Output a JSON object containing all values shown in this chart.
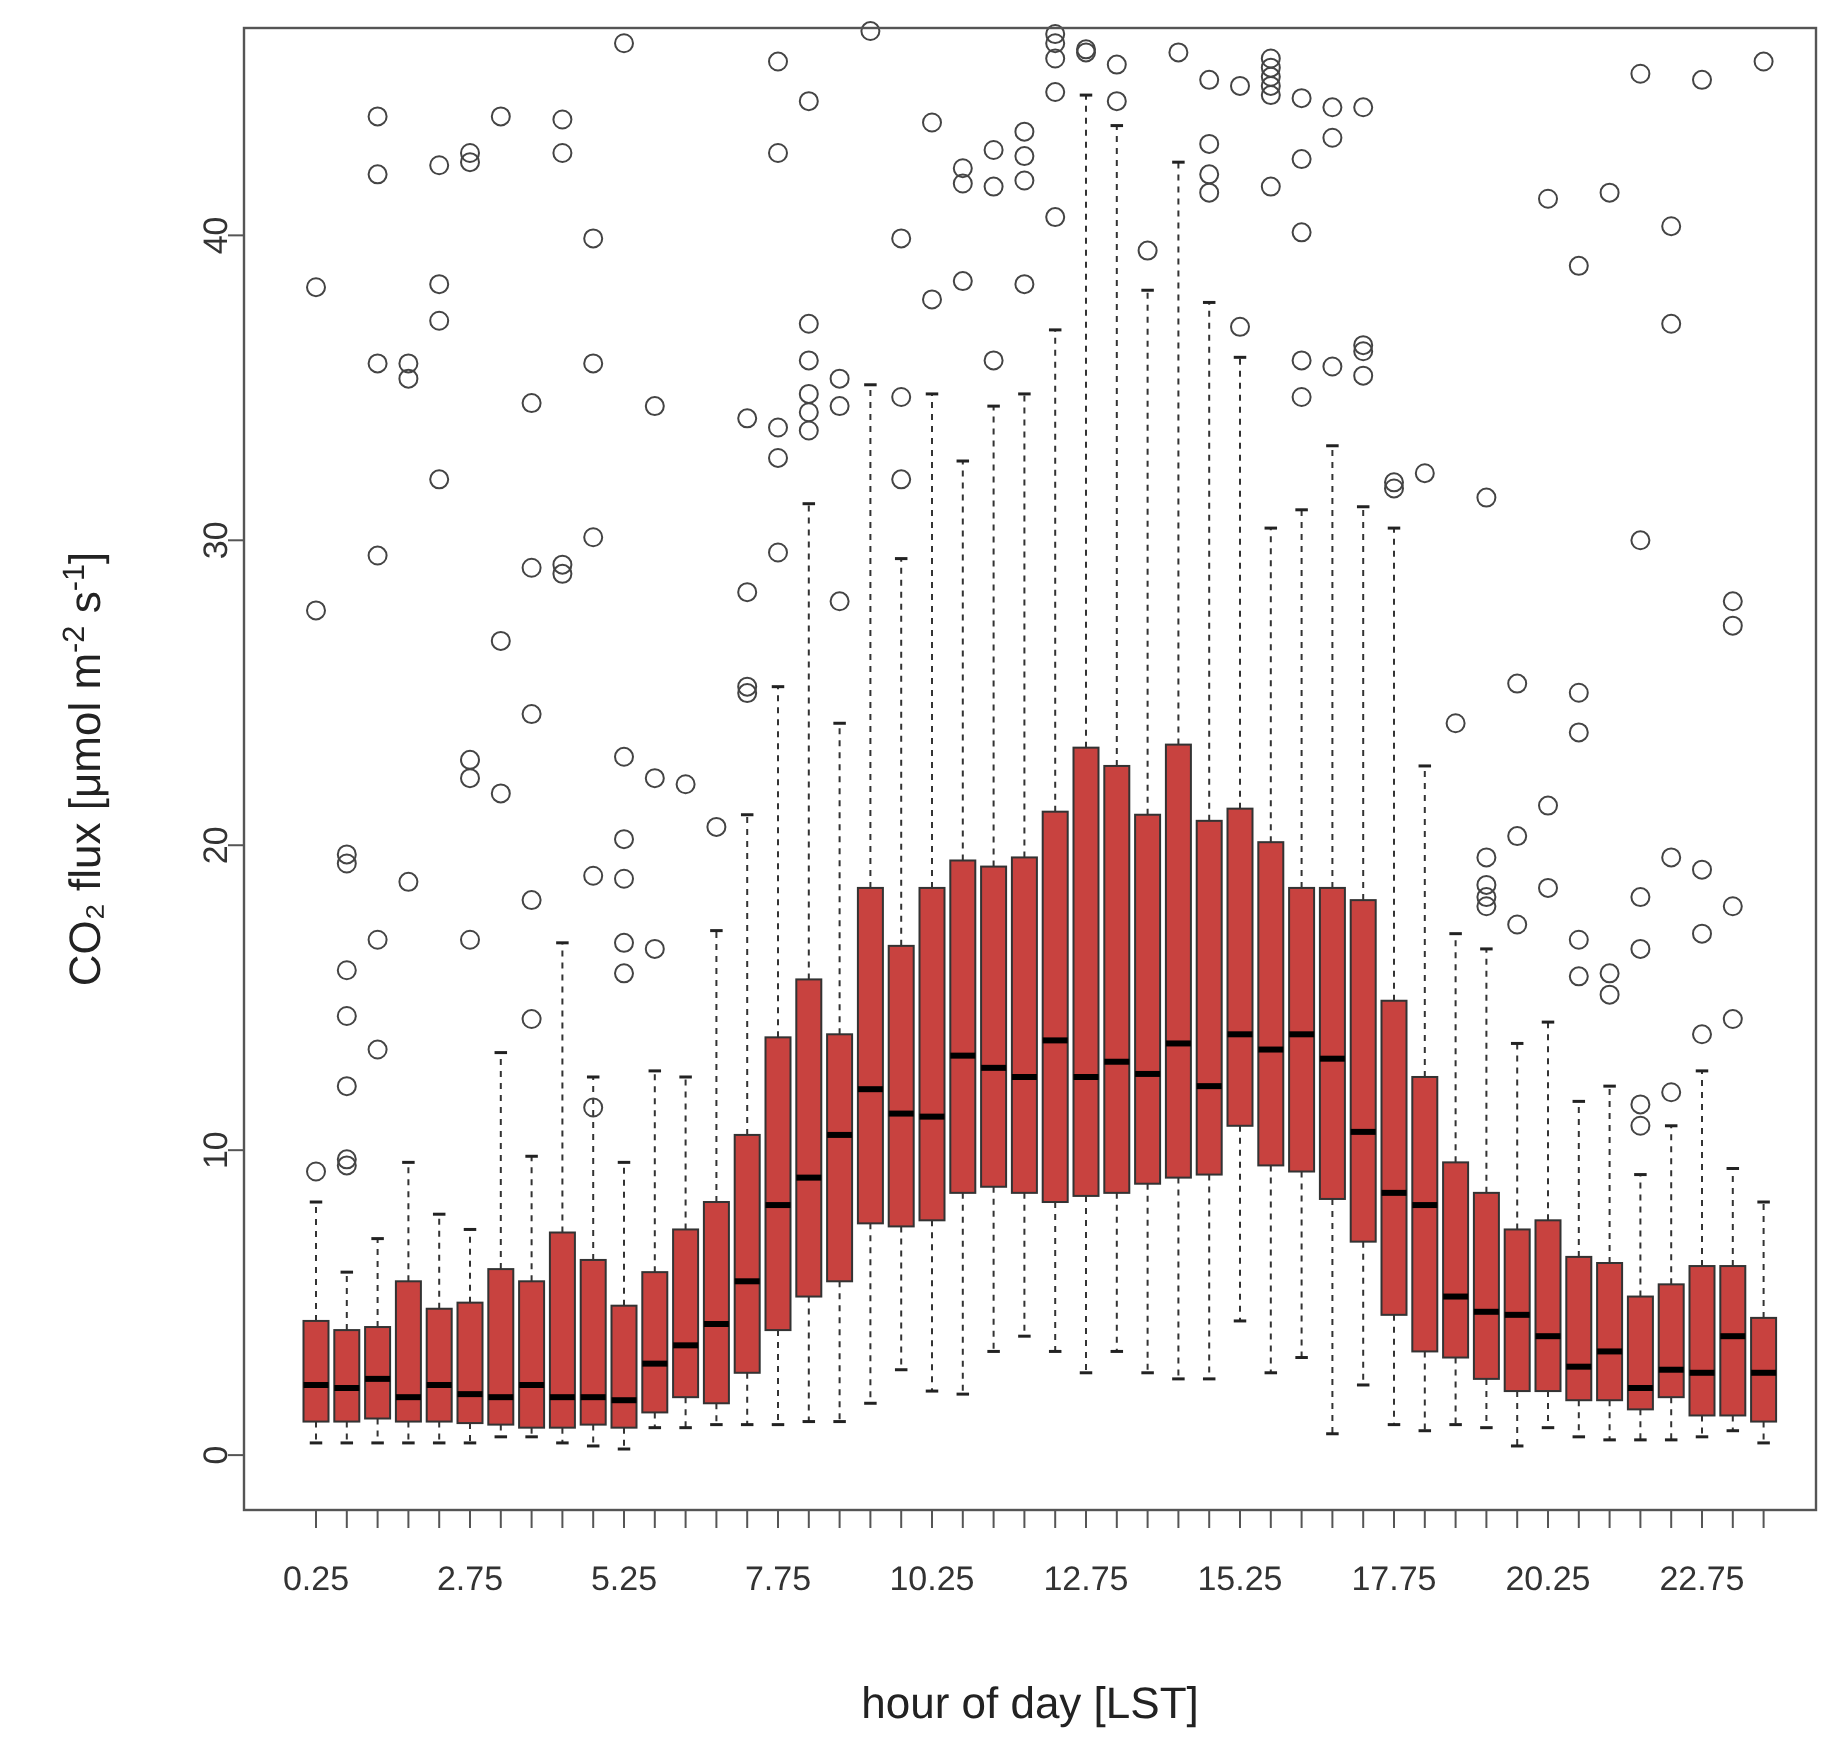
{
  "chart_data": {
    "type": "box",
    "xlabel": "hour of day [LST]",
    "ylabel": "CO₂ flux   [μmol m$^{-2}$ s$^{-1}$]",
    "categories": [
      "0.25",
      null,
      null,
      null,
      null,
      "2.75",
      null,
      null,
      null,
      null,
      "5.25",
      null,
      null,
      null,
      null,
      "7.75",
      null,
      null,
      null,
      null,
      "10.25",
      null,
      null,
      null,
      null,
      "12.75",
      null,
      null,
      null,
      null,
      "15.25",
      null,
      null,
      null,
      null,
      "17.75",
      null,
      null,
      null,
      null,
      "20.25",
      null,
      null,
      null,
      null,
      "22.75",
      null,
      null
    ],
    "ylim": [
      -1.8,
      46.8
    ],
    "yticks": [
      0,
      10,
      20,
      30,
      40
    ],
    "grid": false,
    "series": [
      {
        "color": "#c8423f",
        "boxes": [
          {
            "low": 0.4,
            "q1": 1.1,
            "median": 2.3,
            "q3": 4.4,
            "high": 8.3,
            "outliers": [
              9.3,
              27.7,
              38.3
            ]
          },
          {
            "low": 0.4,
            "q1": 1.1,
            "median": 2.2,
            "q3": 4.1,
            "high": 6.0,
            "outliers": [
              9.5,
              9.7,
              12.1,
              14.4,
              15.9,
              19.4,
              19.7
            ]
          },
          {
            "low": 0.4,
            "q1": 1.2,
            "median": 2.5,
            "q3": 4.2,
            "high": 7.1,
            "outliers": [
              13.3,
              16.9,
              29.5,
              35.8,
              42.0,
              43.9
            ]
          },
          {
            "low": 0.4,
            "q1": 1.1,
            "median": 1.9,
            "q3": 5.7,
            "high": 9.6,
            "outliers": [
              18.8,
              35.3,
              35.8
            ]
          },
          {
            "low": 0.4,
            "q1": 1.1,
            "median": 2.3,
            "q3": 4.8,
            "high": 7.9,
            "outliers": [
              32.0,
              37.2,
              38.4,
              42.3
            ]
          },
          {
            "low": 0.4,
            "q1": 1.05,
            "median": 2.0,
            "q3": 5.0,
            "high": 7.4,
            "outliers": [
              16.9,
              22.2,
              22.8,
              42.4,
              42.7
            ]
          },
          {
            "low": 0.6,
            "q1": 1.0,
            "median": 1.9,
            "q3": 6.1,
            "high": 13.2,
            "outliers": [
              21.7,
              26.7,
              43.9
            ]
          },
          {
            "low": 0.6,
            "q1": 0.9,
            "median": 2.3,
            "q3": 5.7,
            "high": 9.8,
            "outliers": [
              14.3,
              18.2,
              24.3,
              29.1,
              34.5
            ]
          },
          {
            "low": 0.4,
            "q1": 0.9,
            "median": 1.9,
            "q3": 7.3,
            "high": 16.8,
            "outliers": [
              28.9,
              29.2,
              42.7,
              43.8
            ]
          },
          {
            "low": 0.3,
            "q1": 1.0,
            "median": 1.9,
            "q3": 6.4,
            "high": 12.4,
            "outliers": [
              11.4,
              19.0,
              30.1,
              35.8,
              39.9
            ]
          },
          {
            "low": 0.2,
            "q1": 0.9,
            "median": 1.8,
            "q3": 4.9,
            "high": 9.6,
            "outliers": [
              15.8,
              16.8,
              18.9,
              20.2,
              22.9,
              46.3
            ]
          },
          {
            "low": 0.9,
            "q1": 1.4,
            "median": 3.0,
            "q3": 6.0,
            "high": 12.6,
            "outliers": [
              16.6,
              22.2,
              34.4
            ]
          },
          {
            "low": 0.9,
            "q1": 1.9,
            "median": 3.6,
            "q3": 7.4,
            "high": 12.4,
            "outliers": [
              22.0
            ]
          },
          {
            "low": 1.0,
            "q1": 1.7,
            "median": 4.3,
            "q3": 8.3,
            "high": 17.2,
            "outliers": [
              20.6
            ]
          },
          {
            "low": 1.0,
            "q1": 2.7,
            "median": 5.7,
            "q3": 10.5,
            "high": 21.0,
            "outliers": [
              24.99,
              25.2,
              28.3,
              34.0
            ]
          },
          {
            "low": 1.0,
            "q1": 4.1,
            "median": 8.2,
            "q3": 13.7,
            "high": 25.2,
            "outliers": [
              29.6,
              32.7,
              33.7,
              42.7,
              45.7
            ]
          },
          {
            "low": 1.1,
            "q1": 5.2,
            "median": 9.1,
            "q3": 15.6,
            "high": 31.2,
            "outliers": [
              33.6,
              34.2,
              34.8,
              35.9,
              37.1,
              44.4
            ]
          },
          {
            "low": 1.1,
            "q1": 5.7,
            "median": 10.5,
            "q3": 13.8,
            "high": 24.0,
            "outliers": [
              28.0,
              34.4,
              35.3
            ]
          },
          {
            "low": 1.7,
            "q1": 7.6,
            "median": 12.0,
            "q3": 18.6,
            "high": 35.1,
            "outliers": [
              46.7
            ]
          },
          {
            "low": 2.8,
            "q1": 7.5,
            "median": 11.2,
            "q3": 16.7,
            "high": 29.4,
            "outliers": [
              32.0,
              34.7,
              39.9
            ]
          },
          {
            "low": 2.1,
            "q1": 7.7,
            "median": 11.1,
            "q3": 18.6,
            "high": 34.8,
            "outliers": [
              37.9,
              43.7
            ]
          },
          {
            "low": 2.0,
            "q1": 8.6,
            "median": 13.1,
            "q3": 19.5,
            "high": 32.6,
            "outliers": [
              38.5,
              41.7,
              42.2
            ]
          },
          {
            "low": 3.4,
            "q1": 8.8,
            "median": 12.7,
            "q3": 19.3,
            "high": 34.4,
            "outliers": [
              35.9,
              41.6,
              42.8
            ]
          },
          {
            "low": 3.9,
            "q1": 8.6,
            "median": 12.4,
            "q3": 19.6,
            "high": 34.8,
            "outliers": [
              38.4,
              41.8,
              42.6,
              43.4
            ]
          },
          {
            "low": 3.4,
            "q1": 8.3,
            "median": 13.6,
            "q3": 21.1,
            "high": 36.9,
            "outliers": [
              40.6,
              44.7,
              45.8,
              46.3,
              46.6
            ]
          },
          {
            "low": 2.7,
            "q1": 8.5,
            "median": 12.4,
            "q3": 23.2,
            "high": 44.6,
            "outliers": [
              46.0,
              46.1
            ]
          },
          {
            "low": 3.4,
            "q1": 8.6,
            "median": 12.9,
            "q3": 22.6,
            "high": 43.6,
            "outliers": [
              44.4,
              45.6
            ]
          },
          {
            "low": 2.7,
            "q1": 8.9,
            "median": 12.5,
            "q3": 21.0,
            "high": 38.2,
            "outliers": [
              39.5
            ]
          },
          {
            "low": 2.5,
            "q1": 9.1,
            "median": 13.5,
            "q3": 23.3,
            "high": 42.4,
            "outliers": [
              46.0
            ]
          },
          {
            "low": 2.5,
            "q1": 9.2,
            "median": 12.1,
            "q3": 20.8,
            "high": 37.8,
            "outliers": [
              41.4,
              42.0,
              43.0,
              45.1
            ]
          },
          {
            "low": 4.4,
            "q1": 10.8,
            "median": 13.8,
            "q3": 21.2,
            "high": 36.0,
            "outliers": [
              37.0,
              44.9
            ]
          },
          {
            "low": 2.7,
            "q1": 9.5,
            "median": 13.3,
            "q3": 20.1,
            "high": 30.4,
            "outliers": [
              41.6,
              44.6,
              44.9,
              45.2,
              45.5,
              45.8
            ]
          },
          {
            "low": 3.2,
            "q1": 9.3,
            "median": 13.8,
            "q3": 18.6,
            "high": 31.0,
            "outliers": [
              34.7,
              35.9,
              40.1,
              42.5,
              44.5
            ]
          },
          {
            "low": 0.7,
            "q1": 8.4,
            "median": 13.0,
            "q3": 18.6,
            "high": 33.1,
            "outliers": [
              35.7,
              43.2,
              44.2
            ]
          },
          {
            "low": 2.3,
            "q1": 7.0,
            "median": 10.6,
            "q3": 18.2,
            "high": 31.1,
            "outliers": [
              35.4,
              36.2,
              36.4,
              44.2
            ]
          },
          {
            "low": 1.0,
            "q1": 4.6,
            "median": 8.6,
            "q3": 14.9,
            "high": 30.4,
            "outliers": [
              31.7,
              31.9
            ]
          },
          {
            "low": 0.8,
            "q1": 3.4,
            "median": 8.2,
            "q3": 12.4,
            "high": 22.6,
            "outliers": [
              32.2
            ]
          },
          {
            "low": 1.0,
            "q1": 3.2,
            "median": 5.2,
            "q3": 9.6,
            "high": 17.1,
            "outliers": [
              24.0
            ]
          },
          {
            "low": 0.9,
            "q1": 2.5,
            "median": 4.7,
            "q3": 8.6,
            "high": 16.6,
            "outliers": [
              18.0,
              18.3,
              18.7,
              19.6,
              31.4
            ]
          },
          {
            "low": 0.3,
            "q1": 2.1,
            "median": 4.6,
            "q3": 7.4,
            "high": 13.5,
            "outliers": [
              17.4,
              20.3,
              25.3
            ]
          },
          {
            "low": 0.9,
            "q1": 2.1,
            "median": 3.9,
            "q3": 7.7,
            "high": 14.2,
            "outliers": [
              18.6,
              21.3,
              41.2
            ]
          },
          {
            "low": 0.6,
            "q1": 1.8,
            "median": 2.9,
            "q3": 6.5,
            "high": 11.6,
            "outliers": [
              15.7,
              16.9,
              23.7,
              25.0,
              39.0
            ]
          },
          {
            "low": 0.5,
            "q1": 1.8,
            "median": 3.4,
            "q3": 6.3,
            "high": 12.1,
            "outliers": [
              15.1,
              15.8,
              41.4
            ]
          },
          {
            "low": 0.5,
            "q1": 1.5,
            "median": 2.2,
            "q3": 5.2,
            "high": 9.2,
            "outliers": [
              10.8,
              11.5,
              16.6,
              18.3,
              30.0,
              45.3
            ]
          },
          {
            "low": 0.5,
            "q1": 1.9,
            "median": 2.8,
            "q3": 5.6,
            "high": 10.8,
            "outliers": [
              11.9,
              19.6,
              37.1,
              40.3
            ]
          },
          {
            "low": 0.6,
            "q1": 1.3,
            "median": 2.7,
            "q3": 6.2,
            "high": 12.6,
            "outliers": [
              13.8,
              17.1,
              19.2,
              45.1
            ]
          },
          {
            "low": 0.8,
            "q1": 1.3,
            "median": 3.9,
            "q3": 6.2,
            "high": 9.4,
            "outliers": [
              14.3,
              18.0,
              27.2,
              28.0
            ]
          },
          {
            "low": 0.4,
            "q1": 1.1,
            "median": 2.7,
            "q3": 4.5,
            "high": 8.3,
            "outliers": [
              45.7
            ]
          }
        ]
      }
    ]
  }
}
